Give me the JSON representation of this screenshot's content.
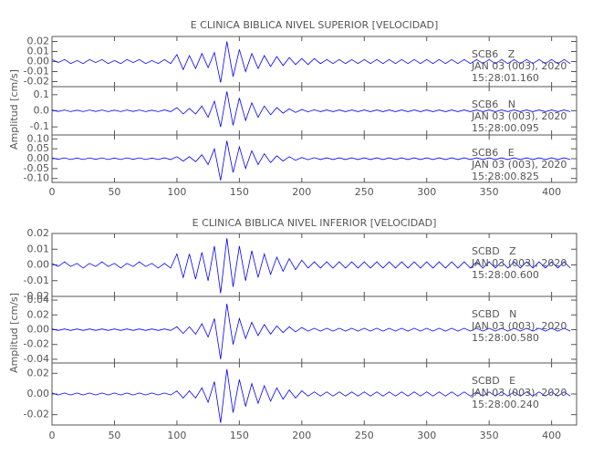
{
  "chart_data": [
    {
      "type": "line",
      "title": "E CLINICA BIBLICA NIVEL SUPERIOR [VELOCIDAD]",
      "y_label": "Amplitud [cm/s]",
      "xlim": [
        0,
        420
      ],
      "xticks": [
        0,
        50,
        100,
        150,
        200,
        250,
        300,
        350,
        400
      ],
      "x": [
        0,
        5,
        10,
        15,
        20,
        25,
        30,
        35,
        40,
        45,
        50,
        55,
        60,
        65,
        70,
        75,
        80,
        85,
        90,
        95,
        100,
        105,
        110,
        115,
        120,
        125,
        130,
        135,
        140,
        145,
        150,
        155,
        160,
        165,
        170,
        175,
        180,
        185,
        190,
        195,
        200,
        205,
        210,
        215,
        220,
        225,
        230,
        235,
        240,
        245,
        250,
        255,
        260,
        265,
        270,
        275,
        280,
        285,
        290,
        295,
        300,
        305,
        310,
        315,
        320,
        325,
        330,
        335,
        340,
        345,
        350,
        355,
        360,
        365,
        370,
        375,
        380,
        385,
        390,
        395,
        400,
        405,
        410,
        415
      ],
      "panels": [
        {
          "station": "SCB6   Z",
          "date": "JAN 03 (003), 2020",
          "time": "15:28:01.160",
          "color": "#0000ff",
          "ylim": [
            -0.025,
            0.025
          ],
          "yticks": [
            0.02,
            0.01,
            {
              "value": 0,
              "label": "0.00"
            },
            -0.01,
            -0.02
          ],
          "values": [
            0.002,
            -0.001,
            0.002,
            -0.002,
            0.001,
            -0.002,
            0.002,
            -0.001,
            0.002,
            -0.002,
            0.001,
            -0.002,
            0.002,
            -0.001,
            0.002,
            -0.002,
            0.001,
            -0.002,
            0.002,
            -0.002,
            0.007,
            -0.008,
            0.006,
            -0.007,
            0.008,
            -0.006,
            0.009,
            -0.021,
            0.02,
            -0.015,
            0.012,
            -0.01,
            0.008,
            -0.007,
            0.006,
            -0.005,
            0.005,
            -0.004,
            0.004,
            -0.003,
            0.003,
            -0.003,
            0.003,
            -0.002,
            0.002,
            -0.002,
            0.002,
            -0.002,
            0.002,
            -0.002,
            0.002,
            -0.002,
            0.002,
            -0.002,
            0.002,
            -0.002,
            0.002,
            -0.002,
            0.002,
            -0.002,
            0.002,
            -0.002,
            0.002,
            -0.002,
            0.002,
            -0.002,
            0.002,
            -0.002,
            0.002,
            -0.002,
            0.002,
            -0.002,
            0.002,
            -0.002,
            0.002,
            -0.002,
            0.002,
            -0.002,
            0.002,
            -0.002,
            0.002,
            -0.002,
            0.002,
            -0.002
          ]
        },
        {
          "station": "SCB6   N",
          "date": "JAN 03 (003), 2020",
          "time": "15:28:00.095",
          "color": "#0000ff",
          "ylim": [
            -0.15,
            0.15
          ],
          "yticks": [
            0.1,
            {
              "value": 0,
              "label": "0.0"
            },
            -0.1
          ],
          "values": [
            0.005,
            -0.004,
            0.005,
            -0.005,
            0.004,
            -0.005,
            0.005,
            -0.004,
            0.005,
            -0.005,
            0.004,
            -0.005,
            0.005,
            -0.004,
            0.005,
            -0.005,
            0.004,
            -0.005,
            0.005,
            -0.005,
            0.02,
            -0.02,
            0.015,
            -0.02,
            0.03,
            -0.04,
            0.06,
            -0.1,
            0.12,
            -0.09,
            0.08,
            -0.06,
            0.05,
            -0.04,
            0.03,
            -0.025,
            0.02,
            -0.015,
            0.012,
            -0.01,
            0.008,
            -0.006,
            0.006,
            -0.005,
            0.005,
            -0.005,
            0.005,
            -0.005,
            0.005,
            -0.005,
            0.005,
            -0.005,
            0.005,
            -0.005,
            0.005,
            -0.005,
            0.005,
            -0.005,
            0.005,
            -0.005,
            0.005,
            -0.005,
            0.005,
            -0.005,
            0.005,
            -0.005,
            0.005,
            -0.005,
            0.005,
            -0.005,
            0.005,
            -0.005,
            0.005,
            -0.005,
            0.005,
            -0.005,
            0.005,
            -0.005,
            0.005,
            -0.005,
            0.005,
            -0.005,
            0.005,
            -0.005
          ]
        },
        {
          "station": "SCB6   E",
          "date": "JAN 03 (003), 2020",
          "time": "15:28:00.825",
          "color": "#0000ff",
          "ylim": [
            -0.12,
            0.12
          ],
          "yticks": [
            {
              "value": 0.1,
              "label": "0.10"
            },
            0.05,
            {
              "value": 0,
              "label": "0.00"
            },
            -0.05,
            {
              "value": -0.1,
              "label": "-0.10"
            }
          ],
          "values": [
            0.004,
            -0.003,
            0.004,
            -0.004,
            0.003,
            -0.004,
            0.004,
            -0.003,
            0.004,
            -0.004,
            0.003,
            -0.004,
            0.004,
            -0.003,
            0.004,
            -0.004,
            0.003,
            -0.004,
            0.004,
            -0.004,
            0.01,
            -0.012,
            0.01,
            -0.015,
            0.02,
            -0.03,
            0.05,
            -0.11,
            0.09,
            -0.07,
            0.06,
            -0.05,
            0.04,
            -0.03,
            0.025,
            -0.02,
            0.015,
            -0.012,
            0.01,
            -0.008,
            0.006,
            -0.005,
            0.005,
            -0.004,
            0.004,
            -0.004,
            0.004,
            -0.004,
            0.004,
            -0.004,
            0.004,
            -0.004,
            0.004,
            -0.004,
            0.004,
            -0.004,
            0.004,
            -0.004,
            0.004,
            -0.004,
            0.004,
            -0.004,
            0.004,
            -0.004,
            0.004,
            -0.004,
            0.004,
            -0.004,
            0.004,
            -0.004,
            0.004,
            -0.004,
            0.004,
            -0.004,
            0.004,
            -0.004,
            0.004,
            -0.004,
            0.004,
            -0.004,
            0.004,
            -0.004,
            0.004,
            -0.004
          ]
        }
      ]
    },
    {
      "type": "line",
      "title": "E CLINICA BIBLICA NIVEL INFERIOR [VELOCIDAD]",
      "y_label": "Amplitud [cm/s]",
      "xlim": [
        0,
        420
      ],
      "xticks": [
        0,
        50,
        100,
        150,
        200,
        250,
        300,
        350,
        400
      ],
      "x": [
        0,
        5,
        10,
        15,
        20,
        25,
        30,
        35,
        40,
        45,
        50,
        55,
        60,
        65,
        70,
        75,
        80,
        85,
        90,
        95,
        100,
        105,
        110,
        115,
        120,
        125,
        130,
        135,
        140,
        145,
        150,
        155,
        160,
        165,
        170,
        175,
        180,
        185,
        190,
        195,
        200,
        205,
        210,
        215,
        220,
        225,
        230,
        235,
        240,
        245,
        250,
        255,
        260,
        265,
        270,
        275,
        280,
        285,
        290,
        295,
        300,
        305,
        310,
        315,
        320,
        325,
        330,
        335,
        340,
        345,
        350,
        355,
        360,
        365,
        370,
        375,
        380,
        385,
        390,
        395,
        400,
        405,
        410,
        415
      ],
      "panels": [
        {
          "station": "SCBD   Z",
          "date": "JAN 03 (003), 2020",
          "time": "15:28:00.600",
          "color": "#0000ff",
          "ylim": [
            -0.02,
            0.02
          ],
          "yticks": [
            0.02,
            0.01,
            {
              "value": 0,
              "label": "0.00"
            },
            -0.01,
            -0.02
          ],
          "values": [
            0.001,
            -0.001,
            0.002,
            -0.001,
            0.001,
            -0.002,
            0.001,
            -0.001,
            0.002,
            -0.001,
            0.001,
            -0.002,
            0.001,
            -0.001,
            0.002,
            -0.001,
            0.001,
            -0.002,
            0.001,
            -0.002,
            0.007,
            -0.008,
            0.007,
            -0.009,
            0.008,
            -0.01,
            0.012,
            -0.018,
            0.017,
            -0.014,
            0.012,
            -0.01,
            0.009,
            -0.008,
            0.007,
            -0.006,
            0.005,
            -0.004,
            0.004,
            -0.003,
            0.003,
            -0.002,
            0.002,
            -0.002,
            0.002,
            -0.002,
            0.002,
            -0.002,
            0.002,
            -0.002,
            0.002,
            -0.002,
            0.002,
            -0.002,
            0.002,
            -0.002,
            0.002,
            -0.002,
            0.002,
            -0.002,
            0.002,
            -0.002,
            0.002,
            -0.002,
            0.002,
            -0.002,
            0.002,
            -0.002,
            0.002,
            -0.002,
            0.002,
            -0.002,
            0.002,
            -0.002,
            0.002,
            -0.002,
            0.002,
            -0.002,
            0.002,
            -0.002,
            0.002,
            -0.002,
            0.002,
            -0.002
          ]
        },
        {
          "station": "SCBD   N",
          "date": "JAN 03 (003), 2020",
          "time": "15:28:00.580",
          "color": "#0000ff",
          "ylim": [
            -0.045,
            0.045
          ],
          "yticks": [
            0.04,
            0.02,
            {
              "value": 0,
              "label": "0.00"
            },
            -0.02,
            -0.04
          ],
          "values": [
            0.001,
            -0.001,
            0.001,
            -0.001,
            0.001,
            -0.001,
            0.001,
            -0.001,
            0.001,
            -0.001,
            0.001,
            -0.001,
            0.001,
            -0.001,
            0.001,
            -0.001,
            0.001,
            -0.001,
            0.001,
            -0.001,
            0.004,
            -0.005,
            0.004,
            -0.006,
            0.008,
            -0.01,
            0.015,
            -0.04,
            0.035,
            -0.02,
            0.015,
            -0.012,
            0.01,
            -0.008,
            0.007,
            -0.006,
            0.005,
            -0.004,
            0.004,
            -0.003,
            0.003,
            -0.002,
            0.002,
            -0.002,
            0.002,
            -0.002,
            0.002,
            -0.002,
            0.002,
            -0.002,
            0.002,
            -0.002,
            0.002,
            -0.002,
            0.002,
            -0.002,
            0.002,
            -0.002,
            0.002,
            -0.002,
            0.002,
            -0.002,
            0.002,
            -0.002,
            0.002,
            -0.002,
            0.002,
            -0.002,
            0.002,
            -0.002,
            0.002,
            -0.002,
            0.002,
            -0.002,
            0.002,
            -0.002,
            0.002,
            -0.002,
            0.002,
            -0.002,
            0.002,
            -0.002,
            0.002,
            -0.002
          ]
        },
        {
          "station": "SCBD   E",
          "date": "JAN 03 (003), 2020",
          "time": "15:28:00.240",
          "color": "#0000ff",
          "ylim": [
            -0.03,
            0.03
          ],
          "yticks": [
            0.02,
            {
              "value": 0,
              "label": "0.00"
            },
            -0.02
          ],
          "values": [
            0.001,
            -0.001,
            0.001,
            -0.001,
            0.001,
            -0.001,
            0.001,
            -0.001,
            0.001,
            -0.001,
            0.001,
            -0.001,
            0.001,
            -0.001,
            0.001,
            -0.001,
            0.001,
            -0.001,
            0.001,
            -0.001,
            0.003,
            -0.004,
            0.003,
            -0.004,
            0.006,
            -0.008,
            0.012,
            -0.028,
            0.024,
            -0.018,
            0.014,
            -0.012,
            0.01,
            -0.009,
            0.008,
            -0.007,
            0.006,
            -0.005,
            0.004,
            -0.004,
            0.003,
            -0.002,
            0.002,
            -0.002,
            0.002,
            -0.002,
            0.002,
            -0.002,
            0.002,
            -0.002,
            0.002,
            -0.002,
            0.002,
            -0.002,
            0.002,
            -0.002,
            0.002,
            -0.002,
            0.002,
            -0.002,
            0.002,
            -0.002,
            0.002,
            -0.002,
            0.002,
            -0.002,
            0.002,
            -0.002,
            0.002,
            -0.002,
            0.002,
            -0.002,
            0.002,
            -0.002,
            0.002,
            -0.002,
            0.002,
            -0.002,
            0.002,
            -0.002,
            0.002,
            -0.002,
            0.002,
            -0.002
          ]
        }
      ]
    }
  ]
}
